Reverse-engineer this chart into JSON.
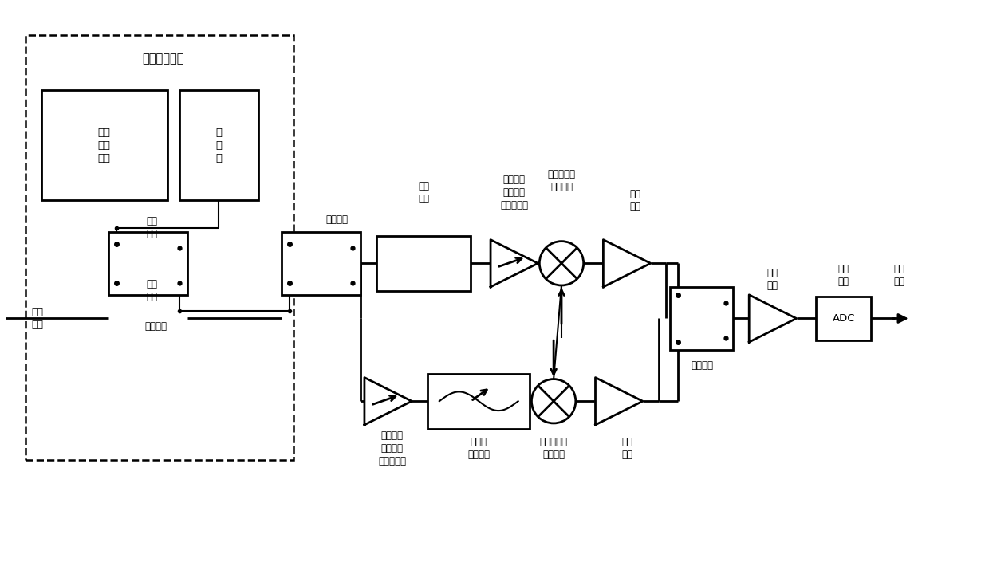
{
  "bg_color": "#ffffff",
  "line_color": "#000000",
  "fig_width": 12.4,
  "fig_height": 7.1,
  "dpi": 100,
  "labels": {
    "online_calib": "在线校准电路",
    "temp_monitor": "温度\n监测\n电路",
    "noise_source": "噪\n声\n源",
    "calib_port": "校准\n端口",
    "meas_port": "测量\n端口",
    "calib_switch": "校准开关",
    "band_switch": "波段开关",
    "signal_in": "信号\n输入",
    "low_pass": "低通\n滤波",
    "rf_lna": "可变增益\n射频前置\n低噪声放大",
    "rf_mixer": "射频超外差\n混频接收",
    "if_amp1": "中频\n放大",
    "if_switch": "中频开关",
    "if_cond": "中频\n调理",
    "adc_box": "ADC",
    "adc_label": "模数\n转换",
    "digital_out": "数字\n输出",
    "mw_lna": "可变增益\n微波前置\n低噪声放大",
    "tunable_filter": "可调谐\n带通滤波",
    "mw_mixer": "微波超外差\n混频接收",
    "if_amp2": "中频\n放大"
  }
}
